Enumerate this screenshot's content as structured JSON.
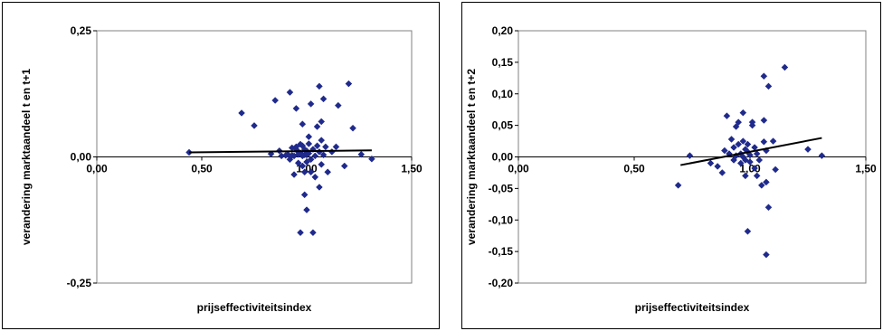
{
  "chart_data": [
    {
      "type": "scatter",
      "xlabel": "prijseffectiviteitsindex",
      "ylabel": "verandering marktaandeel t en t+1",
      "xlim": [
        0,
        1.5
      ],
      "ylim": [
        -0.25,
        0.25
      ],
      "x_ticks": [
        "0,00",
        "0,50",
        "1,00",
        "1,50"
      ],
      "y_ticks": [
        "0,25",
        "0,00",
        "-0,25"
      ],
      "y_tick_values": [
        0.25,
        0,
        -0.25
      ],
      "marker_color": "#1F2A8C",
      "trendline": {
        "x": [
          0.44,
          1.31
        ],
        "y": [
          0.009,
          0.013
        ]
      },
      "points": [
        [
          0.44,
          0.009
        ],
        [
          0.69,
          0.087
        ],
        [
          0.75,
          0.062
        ],
        [
          0.83,
          0.006
        ],
        [
          0.85,
          0.112
        ],
        [
          0.87,
          0.012
        ],
        [
          0.88,
          0.002
        ],
        [
          0.9,
          0.003
        ],
        [
          0.91,
          0.005
        ],
        [
          0.92,
          0.128
        ],
        [
          0.92,
          -0.005
        ],
        [
          0.93,
          0.018
        ],
        [
          0.93,
          0.003
        ],
        [
          0.94,
          0.002
        ],
        [
          0.94,
          -0.035
        ],
        [
          0.95,
          0.015
        ],
        [
          0.95,
          0.096
        ],
        [
          0.95,
          0.02
        ],
        [
          0.96,
          0.01
        ],
        [
          0.96,
          0.005
        ],
        [
          0.96,
          -0.012
        ],
        [
          0.97,
          0.025
        ],
        [
          0.97,
          0.008
        ],
        [
          0.97,
          -0.15
        ],
        [
          0.98,
          0.065
        ],
        [
          0.98,
          0.022
        ],
        [
          0.98,
          0.002
        ],
        [
          0.98,
          -0.018
        ],
        [
          0.99,
          0.015
        ],
        [
          0.99,
          0.004
        ],
        [
          0.99,
          -0.03
        ],
        [
          0.99,
          -0.075
        ],
        [
          1.0,
          0.005
        ],
        [
          1.0,
          0.012
        ],
        [
          1.0,
          -0.01
        ],
        [
          1.0,
          -0.105
        ],
        [
          1.01,
          0.04
        ],
        [
          1.01,
          0.026
        ],
        [
          1.01,
          0.007
        ],
        [
          1.02,
          0.105
        ],
        [
          1.02,
          -0.005
        ],
        [
          1.02,
          -0.03
        ],
        [
          1.03,
          0.015
        ],
        [
          1.03,
          -0.15
        ],
        [
          1.04,
          0.002
        ],
        [
          1.04,
          -0.04
        ],
        [
          1.05,
          0.06
        ],
        [
          1.05,
          0.022
        ],
        [
          1.06,
          0.14
        ],
        [
          1.06,
          0.01
        ],
        [
          1.06,
          -0.06
        ],
        [
          1.07,
          0.07
        ],
        [
          1.07,
          0.033
        ],
        [
          1.07,
          -0.015
        ],
        [
          1.08,
          0.115
        ],
        [
          1.08,
          0.004
        ],
        [
          1.09,
          0.02
        ],
        [
          1.1,
          -0.03
        ],
        [
          1.12,
          0.01
        ],
        [
          1.14,
          0.02
        ],
        [
          1.15,
          0.102
        ],
        [
          1.18,
          -0.018
        ],
        [
          1.2,
          0.145
        ],
        [
          1.22,
          0.057
        ],
        [
          1.26,
          0.005
        ],
        [
          1.31,
          -0.004
        ]
      ]
    },
    {
      "type": "scatter",
      "xlabel": "prijseffectiviteitsindex",
      "ylabel": "verandering marktaandeel t en t+2",
      "xlim": [
        0,
        1.5
      ],
      "ylim": [
        -0.2,
        0.2
      ],
      "x_ticks": [
        "0,00",
        "0,50",
        "1,00",
        "1,50"
      ],
      "y_ticks": [
        "0,20",
        "0,15",
        "0,10",
        "0,05",
        "0,00",
        "-0,05",
        "-0,10",
        "-0,15",
        "-0,20"
      ],
      "y_tick_values": [
        0.2,
        0.15,
        0.1,
        0.05,
        0,
        -0.05,
        -0.1,
        -0.15,
        -0.2
      ],
      "marker_color": "#1F2A8C",
      "trendline": {
        "x": [
          0.7,
          1.31
        ],
        "y": [
          -0.013,
          0.03
        ]
      },
      "points": [
        [
          0.69,
          -0.045
        ],
        [
          0.74,
          0.002
        ],
        [
          0.83,
          -0.01
        ],
        [
          0.86,
          -0.015
        ],
        [
          0.88,
          -0.025
        ],
        [
          0.89,
          0.01
        ],
        [
          0.9,
          0.065
        ],
        [
          0.91,
          0.005
        ],
        [
          0.92,
          0.028
        ],
        [
          0.93,
          0.015
        ],
        [
          0.93,
          -0.005
        ],
        [
          0.94,
          0.002
        ],
        [
          0.94,
          0.048
        ],
        [
          0.95,
          0.055
        ],
        [
          0.95,
          0.02
        ],
        [
          0.96,
          0.005
        ],
        [
          0.96,
          -0.01
        ],
        [
          0.97,
          0.07
        ],
        [
          0.97,
          0.025
        ],
        [
          0.97,
          0.0
        ],
        [
          0.98,
          0.012
        ],
        [
          0.98,
          -0.005
        ],
        [
          0.98,
          -0.03
        ],
        [
          0.99,
          0.02
        ],
        [
          0.99,
          0.008
        ],
        [
          0.99,
          -0.118
        ],
        [
          1.0,
          0.003
        ],
        [
          1.0,
          -0.008
        ],
        [
          1.01,
          0.055
        ],
        [
          1.01,
          0.05
        ],
        [
          1.02,
          0.015
        ],
        [
          1.02,
          -0.018
        ],
        [
          1.03,
          0.005
        ],
        [
          1.03,
          -0.03
        ],
        [
          1.04,
          -0.005
        ],
        [
          1.05,
          -0.045
        ],
        [
          1.06,
          0.128
        ],
        [
          1.06,
          0.058
        ],
        [
          1.06,
          0.024
        ],
        [
          1.07,
          0.01
        ],
        [
          1.07,
          -0.04
        ],
        [
          1.07,
          -0.155
        ],
        [
          1.08,
          0.112
        ],
        [
          1.08,
          -0.08
        ],
        [
          1.1,
          0.025
        ],
        [
          1.11,
          -0.02
        ],
        [
          1.15,
          0.142
        ],
        [
          1.25,
          0.012
        ],
        [
          1.31,
          0.002
        ]
      ]
    }
  ]
}
